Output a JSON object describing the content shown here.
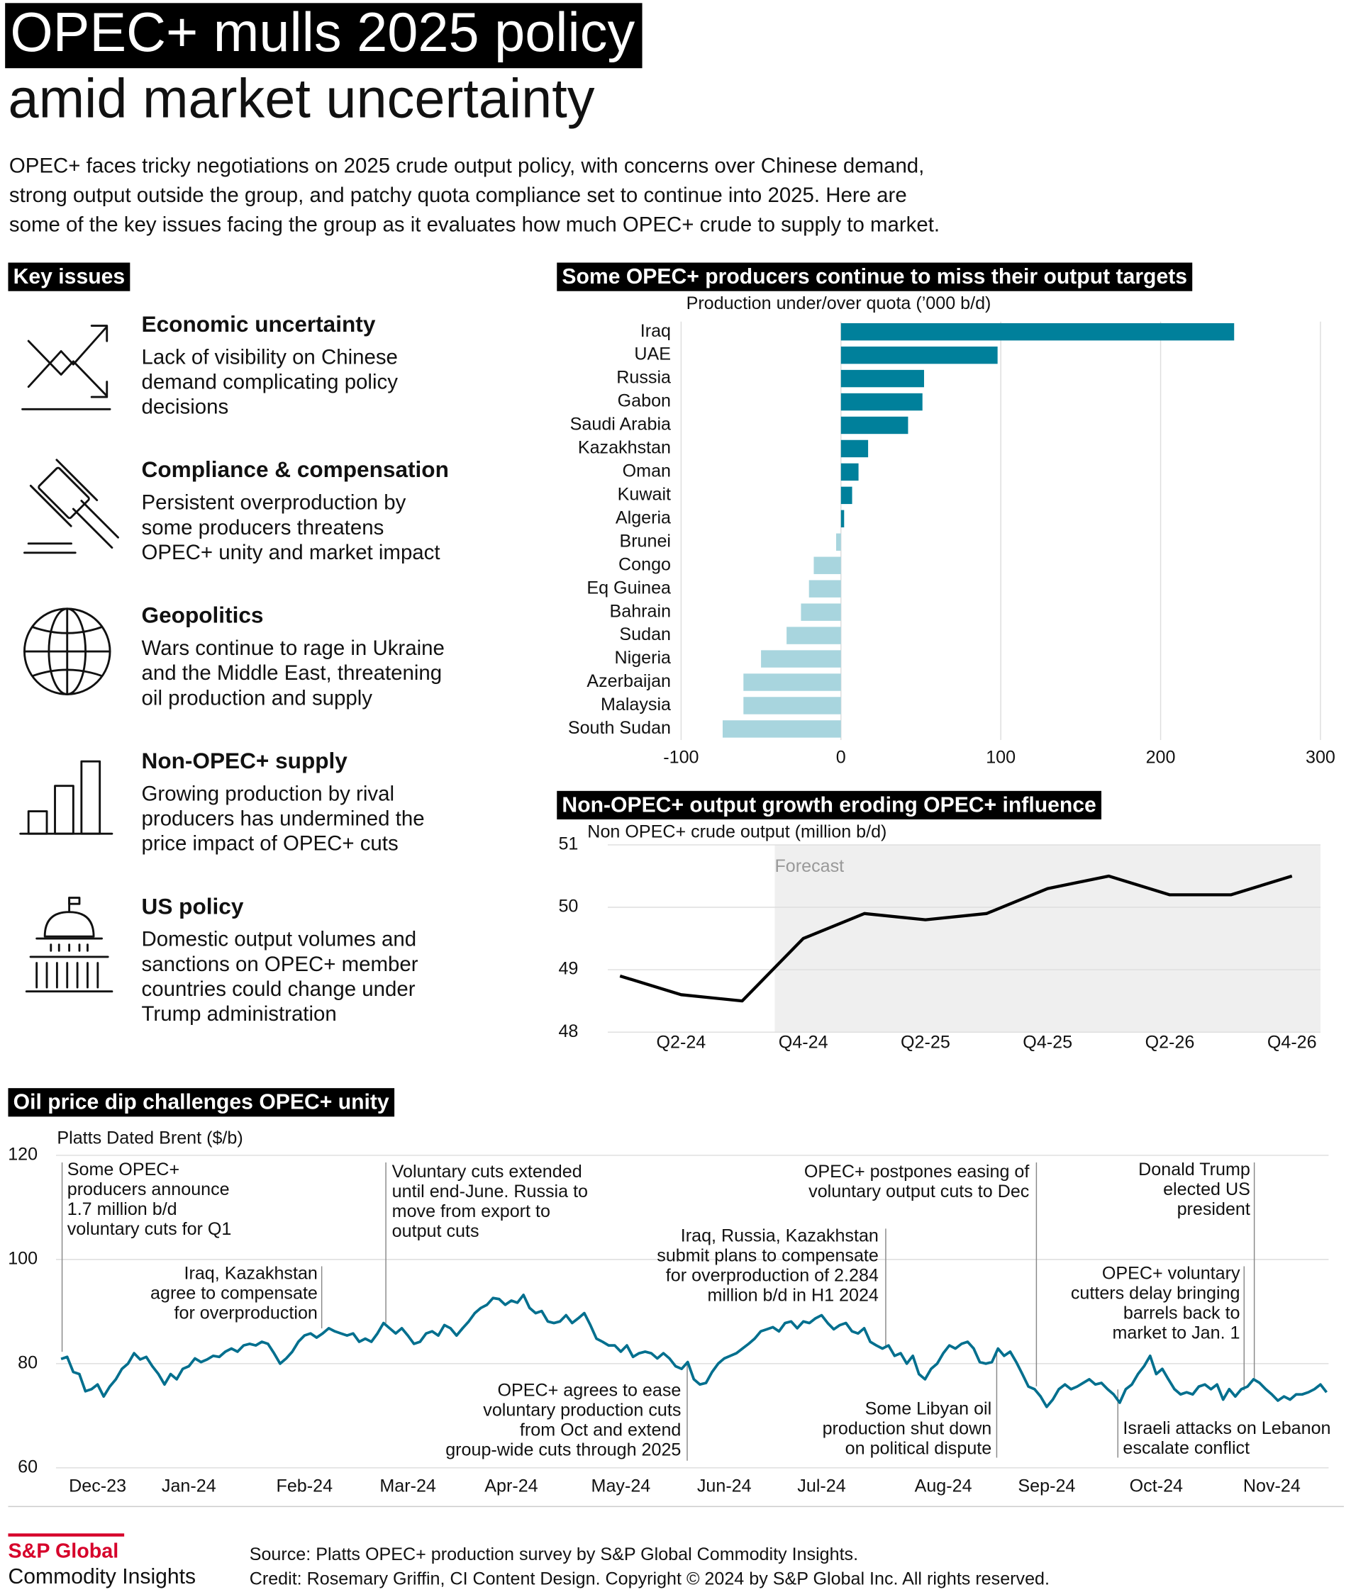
{
  "header": {
    "title_lines": [
      "OPEC+ mulls 2025 policy",
      "amid market uncertainty"
    ],
    "intro_lines": [
      "OPEC+ faces tricky negotiations on 2025 crude output policy, with concerns over Chinese demand,",
      "strong output outside the group, and patchy quota compliance set to continue into 2025. Here are",
      "some of the key issues facing the group as it evaluates how much OPEC+ crude to supply to market."
    ]
  },
  "key_issues": {
    "title": "Key issues",
    "items": [
      {
        "title": "Economic uncertainty",
        "lines": [
          "Lack of visibility on Chinese",
          "demand complicating policy",
          "decisions"
        ]
      },
      {
        "title": "Compliance & compensation",
        "lines": [
          "Persistent overproduction by",
          "some producers threatens",
          "OPEC+ unity and market impact"
        ]
      },
      {
        "title": "Geopolitics",
        "lines": [
          "Wars continue to rage in Ukraine",
          "and the Middle East, threatening",
          "oil production and supply"
        ]
      },
      {
        "title": "Non-OPEC+ supply",
        "lines": [
          "Growing production by rival",
          "producers has undermined the",
          "price impact of OPEC+ cuts"
        ]
      },
      {
        "title": "US policy",
        "lines": [
          "Domestic output volumes and",
          "sanctions on OPEC+ member",
          "countries could change under",
          "Trump administration"
        ]
      }
    ]
  },
  "chart_data": [
    {
      "type": "bar",
      "orientation": "horizontal",
      "title": "Some OPEC+ producers continue to miss their output targets",
      "axis_label": "Production under/over quota (’000 b/d)",
      "categories": [
        "Iraq",
        "UAE",
        "Russia",
        "Gabon",
        "Saudi Arabia",
        "Kazakhstan",
        "Oman",
        "Kuwait",
        "Algeria",
        "Brunei",
        "Congo",
        "Eq Guinea",
        "Bahrain",
        "Sudan",
        "Nigeria",
        "Azerbaijan",
        "Malaysia",
        "South Sudan"
      ],
      "values": [
        246,
        98,
        52,
        51,
        42,
        17,
        11,
        7,
        2,
        -3,
        -17,
        -20,
        -25,
        -34,
        -50,
        -61,
        -61,
        -74
      ],
      "color": "#00809b",
      "negative_color": "#a8d5de",
      "xlim": [
        -100,
        300
      ],
      "xticks": [
        -100,
        0,
        100,
        200,
        300
      ],
      "grid": true
    },
    {
      "type": "line",
      "title": "Non-OPEC+ output growth eroding OPEC+ influence",
      "axis_label": "Non OPEC+ crude output (million b/d)",
      "annotation": "Forecast",
      "categories": [
        null,
        "Q2-24",
        null,
        "Q4-24",
        null,
        "Q2-25",
        null,
        "Q4-25",
        null,
        "Q2-26",
        null,
        "Q4-26"
      ],
      "values": [
        48.9,
        48.6,
        48.5,
        49.5,
        49.9,
        49.8,
        49.9,
        50.3,
        50.5,
        50.2,
        50.2,
        50.5
      ],
      "color": "#000000",
      "ylim": [
        48,
        51
      ],
      "yticks": [
        48,
        49,
        50,
        51
      ],
      "grid": true
    },
    {
      "type": "line",
      "title": "Oil price dip challenges OPEC+ unity",
      "axis_label": "Platts Dated Brent ($/b)",
      "categories": [
        null,
        null,
        null,
        null,
        null,
        null,
        "Dec-23",
        null,
        null,
        null,
        null,
        null,
        null,
        null,
        null,
        null,
        null,
        null,
        null,
        null,
        null,
        "Jan-24",
        null,
        null,
        null,
        null,
        null,
        null,
        null,
        null,
        null,
        null,
        null,
        null,
        null,
        null,
        null,
        null,
        null,
        null,
        "Feb-24",
        null,
        null,
        null,
        null,
        null,
        null,
        null,
        null,
        null,
        null,
        null,
        null,
        null,
        null,
        null,
        null,
        "Mar-24",
        null,
        null,
        null,
        null,
        null,
        null,
        null,
        null,
        null,
        null,
        null,
        null,
        null,
        null,
        null,
        null,
        "Apr-24",
        null,
        null,
        null,
        null,
        null,
        null,
        null,
        null,
        null,
        null,
        null,
        null,
        null,
        null,
        null,
        null,
        null,
        "May-24",
        null,
        null,
        null,
        null,
        null,
        null,
        null,
        null,
        null,
        null,
        null,
        null,
        null,
        null,
        null,
        null,
        "Jun-24",
        null,
        null,
        null,
        null,
        null,
        null,
        null,
        null,
        null,
        null,
        null,
        null,
        null,
        null,
        null,
        "Jul-24",
        null,
        null,
        null,
        null,
        null,
        null,
        null,
        null,
        null,
        null,
        null,
        null,
        null,
        null,
        null,
        null,
        null,
        null,
        null,
        "Aug-24",
        null,
        null,
        null,
        null,
        null,
        null,
        null,
        null,
        null,
        null,
        null,
        null,
        null,
        null,
        null,
        null,
        "Sep-24",
        null,
        null,
        null,
        null,
        null,
        null,
        null,
        null,
        null,
        null,
        null,
        null,
        null,
        null,
        null,
        null,
        null,
        "Oct-24",
        null,
        null,
        null,
        null,
        null,
        null,
        null,
        null,
        null,
        null,
        null,
        null,
        null,
        null,
        null,
        null,
        null,
        null,
        "Nov-24",
        null,
        null,
        null,
        null,
        null,
        null,
        null,
        null,
        null
      ],
      "values": [
        80.9,
        81.3,
        78.4,
        78,
        74.7,
        75.1,
        76,
        73.7,
        75.6,
        77,
        79,
        80,
        82,
        80.8,
        81.3,
        79.5,
        78,
        76,
        78,
        77,
        79,
        79.5,
        81,
        80.3,
        80.8,
        81.5,
        81.3,
        82.3,
        82.9,
        82.3,
        83.5,
        83.8,
        83.5,
        84.2,
        83.8,
        82,
        80,
        81,
        82.3,
        84.2,
        85.4,
        85.8,
        85,
        85.8,
        86.8,
        86.2,
        85.8,
        85.4,
        85.8,
        84.2,
        84.8,
        84.2,
        85.8,
        87.8,
        86.8,
        85.8,
        86.8,
        85.4,
        83.8,
        84.2,
        85.8,
        86.2,
        85.4,
        87.4,
        86.8,
        85.4,
        86.8,
        88.1,
        89.7,
        90.7,
        91.3,
        92.6,
        92.4,
        91.3,
        92.1,
        91.7,
        93.2,
        90.7,
        89.7,
        90.1,
        88.1,
        87.8,
        88.1,
        89.3,
        87.8,
        88.7,
        89.7,
        87.4,
        84.8,
        84.2,
        83.5,
        83.5,
        82.3,
        83.5,
        81.3,
        82,
        82.3,
        82,
        81,
        82,
        81,
        79.5,
        79,
        80.3,
        77,
        76,
        76.3,
        78.4,
        80,
        81,
        81.5,
        82,
        82.9,
        83.8,
        84.8,
        86.2,
        86.6,
        87,
        86.2,
        87.8,
        88.1,
        86.8,
        88.1,
        87.8,
        88.7,
        89.3,
        87.8,
        86.6,
        87.4,
        87.8,
        86.2,
        85.8,
        86.8,
        84.2,
        83.5,
        82.9,
        83.5,
        81.5,
        82,
        80,
        81.5,
        78,
        77,
        79,
        80,
        82,
        83.5,
        82.9,
        83.8,
        84.2,
        82.9,
        80.3,
        80,
        80.3,
        82.9,
        81.5,
        82.3,
        80.3,
        78,
        75.6,
        75.1,
        73.7,
        71.7,
        73.1,
        75.1,
        76,
        75.1,
        75.6,
        76.3,
        77,
        76,
        76.3,
        75.1,
        74.1,
        72.5,
        75.1,
        76,
        78,
        79.5,
        81.5,
        78,
        79,
        77,
        75.1,
        74.1,
        74.5,
        74.1,
        75.6,
        76,
        75.1,
        76,
        73.1,
        75.1,
        73.7,
        75.1,
        75.6,
        77,
        76.3,
        75.1,
        74.1,
        72.9,
        73.7,
        73.1,
        74.1,
        74.1,
        74.5,
        75.1,
        76,
        74.5
      ],
      "color": "#006f8e",
      "ylim": [
        60,
        120
      ],
      "yticks": [
        60,
        80,
        100,
        120
      ],
      "grid": true,
      "annotations": [
        {
          "lines": [
            "Some OPEC+",
            "producers announce",
            "1.7 million b/d",
            "voluntary cuts for Q1"
          ]
        },
        {
          "lines": [
            "Iraq, Kazakhstan",
            "agree to compensate",
            "for overproduction"
          ]
        },
        {
          "lines": [
            "Voluntary cuts extended",
            "until end-June. Russia to",
            "move from export to",
            "output cuts"
          ]
        },
        {
          "lines": [
            "OPEC+ agrees to ease",
            "voluntary production cuts",
            "from Oct and extend",
            "group-wide cuts through 2025"
          ]
        },
        {
          "lines": [
            "Iraq, Russia, Kazakhstan",
            "submit plans to compensate",
            "for overproduction of 2.284",
            "million b/d in H1 2024"
          ]
        },
        {
          "lines": [
            "OPEC+ postpones easing of",
            "voluntary output cuts to Dec"
          ]
        },
        {
          "lines": [
            "Some Libyan oil",
            "production shut down",
            "on political dispute"
          ]
        },
        {
          "lines": [
            "Donald Trump",
            "elected US",
            "president"
          ]
        },
        {
          "lines": [
            "OPEC+ voluntary",
            "cutters delay bringing",
            "barrels back to",
            "market to Jan. 1"
          ]
        },
        {
          "lines": [
            "Israeli attacks on Lebanon",
            "escalate conflict"
          ]
        }
      ]
    }
  ],
  "footer": {
    "brand": "S&P Global",
    "brand_sub": "Commodity Insights",
    "source": "Source: Platts OPEC+ production survey by S&P Global Commodity Insights.",
    "credit": "Credit: Rosemary Griffin, CI Content Design. Copyright © 2024 by S&P Global Inc.  All rights reserved."
  }
}
